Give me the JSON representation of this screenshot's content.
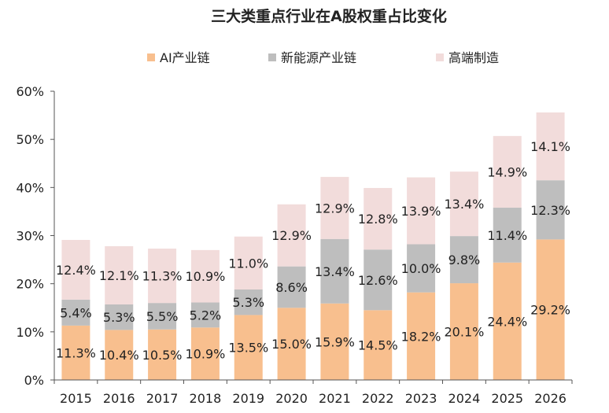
{
  "chart_data": {
    "type": "bar",
    "stacked": true,
    "title": "三大类重点行业在A股权重占比变化",
    "xlabel": "",
    "ylabel": "",
    "ylim": [
      0,
      60
    ],
    "y_ticks": [
      "0%",
      "10%",
      "20%",
      "30%",
      "40%",
      "50%",
      "60%"
    ],
    "y_tick_values": [
      0,
      10,
      20,
      30,
      40,
      50,
      60
    ],
    "categories": [
      "2015",
      "2016",
      "2017",
      "2018",
      "2019",
      "2020",
      "2021",
      "2022",
      "2023",
      "2024",
      "2025",
      "2026"
    ],
    "legend_position": "top",
    "grid": false,
    "series": [
      {
        "name": "AI产业链",
        "color": "#F8BF8E",
        "values": [
          11.3,
          10.4,
          10.5,
          10.9,
          13.5,
          15.0,
          15.9,
          14.5,
          18.2,
          20.1,
          24.4,
          29.2
        ],
        "labels": [
          "11.3%",
          "10.4%",
          "10.5%",
          "10.9%",
          "13.5%",
          "15.0%",
          "15.9%",
          "14.5%",
          "18.2%",
          "20.1%",
          "24.4%",
          "29.2%"
        ]
      },
      {
        "name": "新能源产业链",
        "color": "#BEBEBE",
        "values": [
          5.4,
          5.3,
          5.5,
          5.2,
          5.3,
          8.6,
          13.4,
          12.6,
          10.0,
          9.8,
          11.4,
          12.3
        ],
        "labels": [
          "5.4%",
          "5.3%",
          "5.5%",
          "5.2%",
          "5.3%",
          "8.6%",
          "13.4%",
          "12.6%",
          "10.0%",
          "9.8%",
          "11.4%",
          "12.3%"
        ]
      },
      {
        "name": "高端制造",
        "color": "#F2DCDB",
        "values": [
          12.4,
          12.1,
          11.3,
          10.9,
          11.0,
          12.9,
          12.9,
          12.8,
          13.9,
          13.4,
          14.9,
          14.1
        ],
        "labels": [
          "12.4%",
          "12.1%",
          "11.3%",
          "10.9%",
          "11.0%",
          "12.9%",
          "12.9%",
          "12.8%",
          "13.9%",
          "13.4%",
          "14.9%",
          "14.1%"
        ]
      }
    ]
  }
}
